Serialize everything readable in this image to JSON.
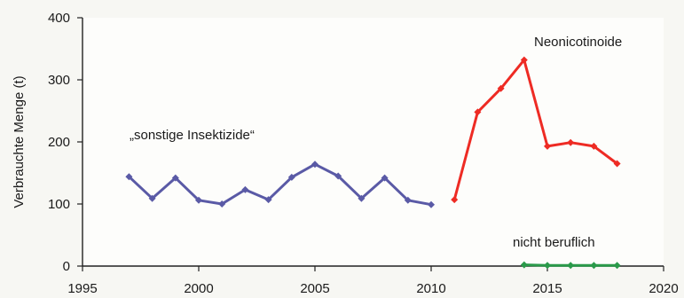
{
  "chart_data": {
    "type": "line",
    "title": "",
    "xlabel": "",
    "ylabel": "Verbrauchte Menge (t)",
    "xlim": [
      1995,
      2020
    ],
    "ylim": [
      0,
      400
    ],
    "xticks": [
      1995,
      2000,
      2005,
      2010,
      2015,
      2020
    ],
    "yticks": [
      0,
      100,
      200,
      300,
      400
    ],
    "grid": false,
    "legend": "none",
    "series": [
      {
        "name": "„sonstige Insektizide“",
        "color": "#5a5aa6",
        "x": [
          1997,
          1998,
          1999,
          2000,
          2001,
          2002,
          2003,
          2004,
          2005,
          2006,
          2007,
          2008,
          2009,
          2010
        ],
        "y": [
          144,
          109,
          142,
          106,
          100,
          123,
          107,
          143,
          164,
          145,
          109,
          142,
          106,
          99
        ]
      },
      {
        "name": "Neonicotinoide",
        "color": "#ee2b24",
        "x": [
          2011,
          2012,
          2013,
          2014,
          2015,
          2016,
          2017,
          2018
        ],
        "y": [
          107,
          248,
          286,
          332,
          193,
          199,
          193,
          165
        ]
      },
      {
        "name": "nicht beruflich",
        "color": "#2a9a4a",
        "x": [
          2014,
          2015,
          2016,
          2017,
          2018
        ],
        "y": [
          2,
          1,
          1,
          1,
          1
        ]
      }
    ]
  }
}
